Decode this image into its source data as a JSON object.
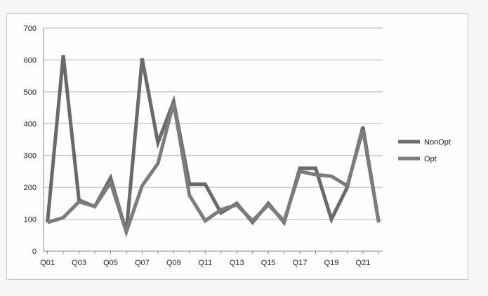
{
  "chart_data": {
    "type": "line",
    "categories": [
      "Q01",
      "Q02",
      "Q03",
      "Q04",
      "Q05",
      "Q06",
      "Q07",
      "Q08",
      "Q09",
      "Q10",
      "Q11",
      "Q12",
      "Q13",
      "Q14",
      "Q15",
      "Q16",
      "Q17",
      "Q18",
      "Q19",
      "Q20",
      "Q21",
      "Q22"
    ],
    "tick_labels": [
      "Q01",
      "Q03",
      "Q05",
      "Q07",
      "Q09",
      "Q11",
      "Q13",
      "Q15",
      "Q17",
      "Q19",
      "Q21"
    ],
    "series": [
      {
        "name": "NonOpt",
        "color": "#6a6a6a",
        "values": [
          90,
          615,
          160,
          140,
          230,
          60,
          605,
          340,
          470,
          210,
          210,
          120,
          150,
          90,
          150,
          90,
          260,
          260,
          100,
          200,
          390,
          90
        ]
      },
      {
        "name": "Opt",
        "color": "#7c7c7c",
        "values": [
          90,
          105,
          155,
          140,
          215,
          60,
          205,
          275,
          465,
          175,
          95,
          130,
          145,
          95,
          145,
          95,
          250,
          240,
          235,
          205,
          380,
          90
        ]
      }
    ],
    "y_ticks": [
      "0",
      "100",
      "200",
      "300",
      "400",
      "500",
      "600",
      "700"
    ],
    "ylim": [
      0,
      700
    ],
    "grid": "horizontal",
    "legend_position": "right"
  }
}
